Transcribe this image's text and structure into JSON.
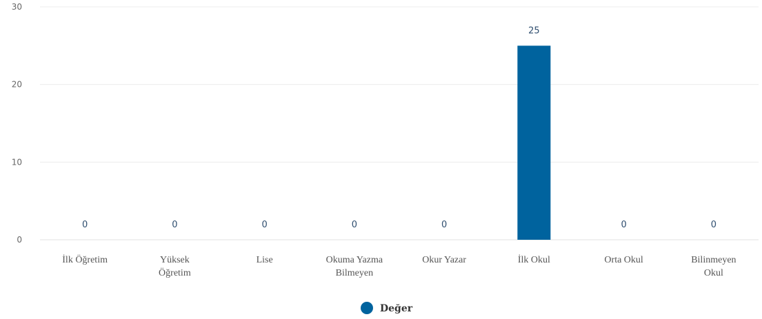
{
  "chart_data": {
    "type": "bar",
    "categories": [
      [
        "İlk Öğretim"
      ],
      [
        "Yüksek",
        "Öğretim"
      ],
      [
        "Lise"
      ],
      [
        "Okuma Yazma",
        "Bilmeyen"
      ],
      [
        "Okur Yazar"
      ],
      [
        "İlk Okul"
      ],
      [
        "Orta Okul"
      ],
      [
        "Bilinmeyen",
        "Okul"
      ]
    ],
    "series": [
      {
        "name": "Değer",
        "color": "#00639e",
        "values": [
          0,
          0,
          0,
          0,
          0,
          25,
          0,
          0
        ]
      }
    ],
    "ylim": [
      0,
      30
    ],
    "yticks": [
      0,
      10,
      20,
      30
    ],
    "grid": true,
    "data_labels": true,
    "legend_position": "bottom-center",
    "legend_marker": "circle"
  }
}
